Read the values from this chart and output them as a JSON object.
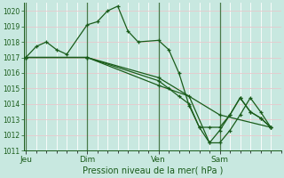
{
  "xlabel": "Pression niveau de la mer( hPa )",
  "ylim": [
    1011,
    1020.5
  ],
  "yticks": [
    1011,
    1012,
    1013,
    1014,
    1015,
    1016,
    1017,
    1018,
    1019,
    1020
  ],
  "background_color": "#c8e8e0",
  "grid_color_h": "#e8c8cc",
  "grid_color_v": "#ffffff",
  "line_color": "#1a5c1a",
  "day_sep_color": "#4a7a4a",
  "marker": "+",
  "day_labels": [
    "Jeu",
    "Dim",
    "Ven",
    "Sam"
  ],
  "day_positions": [
    0.0,
    3.0,
    6.5,
    9.5
  ],
  "xlim": [
    -0.1,
    12.5
  ],
  "series": [
    {
      "x": [
        0.0,
        0.5,
        1.0,
        1.5,
        2.0,
        3.0,
        3.5,
        4.0,
        4.5,
        5.0,
        5.5,
        6.5,
        7.0,
        7.5,
        8.0,
        8.5,
        9.0,
        9.5,
        10.0,
        10.5,
        11.0,
        11.5,
        12.0
      ],
      "y": [
        1017.0,
        1017.7,
        1018.0,
        1017.5,
        1017.2,
        1019.1,
        1019.3,
        1020.0,
        1020.3,
        1018.7,
        1018.0,
        1018.1,
        1017.5,
        1016.0,
        1013.9,
        1012.5,
        1012.5,
        1012.5,
        1013.3,
        1014.4,
        1013.5,
        1013.1,
        1012.5
      ]
    },
    {
      "x": [
        0.0,
        3.0,
        6.5,
        9.5,
        12.0
      ],
      "y": [
        1017.0,
        1017.0,
        1015.7,
        1013.3,
        1012.5
      ]
    },
    {
      "x": [
        0.0,
        3.0,
        6.5,
        8.0,
        9.0,
        9.5,
        10.0,
        10.5,
        11.0,
        11.5,
        12.0
      ],
      "y": [
        1017.0,
        1017.0,
        1015.2,
        1014.5,
        1011.5,
        1011.5,
        1012.3,
        1013.3,
        1014.4,
        1013.5,
        1012.5
      ]
    },
    {
      "x": [
        0.0,
        3.0,
        6.5,
        7.0,
        7.5,
        8.0,
        8.5,
        9.0,
        9.5,
        10.0,
        10.5,
        11.0,
        11.5,
        12.0
      ],
      "y": [
        1017.0,
        1017.0,
        1015.5,
        1015.0,
        1014.5,
        1014.0,
        1012.5,
        1011.5,
        1012.3,
        1013.3,
        1014.4,
        1013.5,
        1013.1,
        1012.5
      ]
    }
  ]
}
